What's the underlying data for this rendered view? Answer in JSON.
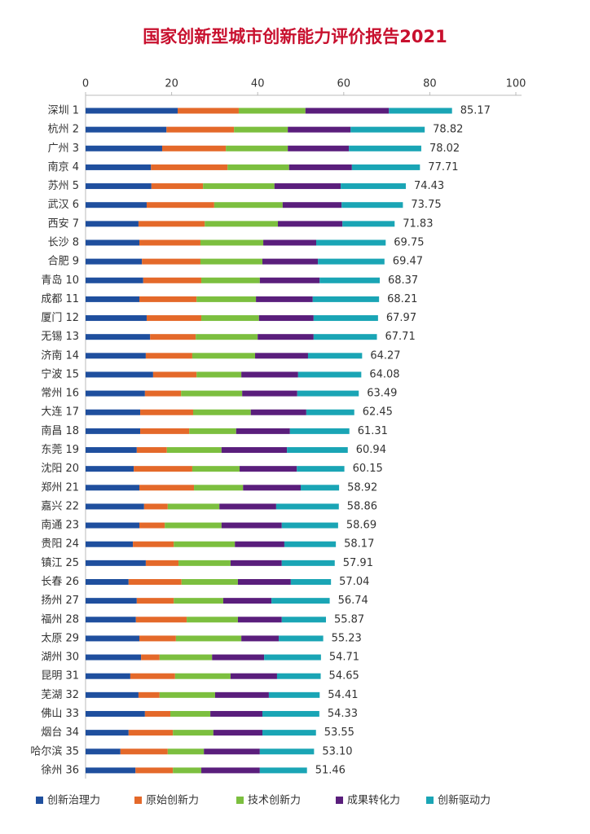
{
  "chart_data": {
    "type": "stacked-bar-horizontal",
    "title": "国家创新型城市创新能力评价报告2021",
    "categories": [
      "深圳 1",
      "杭州 2",
      "广州 3",
      "南京 4",
      "苏州 5",
      "武汉 6",
      "西安 7",
      "长沙 8",
      "合肥 9",
      "青岛 10",
      "成都 11",
      "厦门 12",
      "无锡 13",
      "济南 14",
      "宁波 15",
      "常州 16",
      "大连 17",
      "南昌 18",
      "东莞 19",
      "沈阳 20",
      "郑州 21",
      "嘉兴 22",
      "南通 23",
      "贵阳 24",
      "镇江 25",
      "长春 26",
      "扬州 27",
      "福州 28",
      "太原 29",
      "湖州 30",
      "昆明 31",
      "芜湖 32",
      "佛山 33",
      "烟台 34",
      "哈尔滨 35",
      "徐州 36"
    ],
    "series": [
      {
        "name": "创新治理力",
        "color": "#1f4f9e",
        "values": [
          21.4,
          18.8,
          17.8,
          15.2,
          15.3,
          14.2,
          12.3,
          12.5,
          13.1,
          13.4,
          12.5,
          14.2,
          15.0,
          14.0,
          15.7,
          13.8,
          12.7,
          12.7,
          11.9,
          11.2,
          12.5,
          13.6,
          12.5,
          11.0,
          14.0,
          10.0,
          11.9,
          11.7,
          12.5,
          12.9,
          10.4,
          12.3,
          13.8,
          10.0,
          8.1,
          11.6
        ]
      },
      {
        "name": "原始创新力",
        "color": "#e4692a",
        "values": [
          14.2,
          15.7,
          14.8,
          17.8,
          12.0,
          15.7,
          15.4,
          14.2,
          13.6,
          13.5,
          13.3,
          12.7,
          10.6,
          10.8,
          10.1,
          8.4,
          12.3,
          11.4,
          7.0,
          13.6,
          12.7,
          5.5,
          5.9,
          9.5,
          7.6,
          12.3,
          8.6,
          11.8,
          8.5,
          4.3,
          10.4,
          4.9,
          5.9,
          10.3,
          11.0,
          8.7
        ]
      },
      {
        "name": "技术创新力",
        "color": "#7cbf3f",
        "values": [
          15.5,
          12.5,
          14.4,
          14.3,
          16.6,
          15.9,
          17.0,
          14.6,
          14.4,
          13.6,
          13.8,
          13.4,
          14.4,
          14.6,
          10.4,
          14.2,
          13.4,
          10.9,
          12.7,
          11.0,
          11.4,
          12.0,
          13.2,
          14.2,
          12.1,
          13.1,
          11.5,
          11.9,
          15.2,
          12.2,
          12.9,
          12.9,
          9.3,
          9.4,
          8.4,
          6.6
        ]
      },
      {
        "name": "成果转化力",
        "color": "#5a1e7c",
        "values": [
          19.4,
          14.6,
          14.2,
          14.6,
          15.4,
          13.7,
          15.0,
          12.3,
          12.9,
          13.9,
          13.2,
          12.7,
          13.0,
          12.3,
          13.2,
          12.8,
          12.9,
          12.5,
          15.2,
          13.3,
          13.4,
          13.2,
          14.0,
          11.5,
          11.9,
          12.3,
          11.2,
          10.2,
          8.7,
          12.1,
          10.8,
          12.5,
          12.1,
          11.4,
          13.0,
          13.6
        ]
      },
      {
        "name": "创新驱动力",
        "color": "#1aa5b5",
        "values": [
          14.67,
          17.22,
          16.82,
          15.81,
          15.13,
          14.25,
          12.13,
          16.15,
          15.47,
          13.97,
          15.41,
          14.97,
          14.71,
          12.57,
          14.68,
          14.29,
          11.15,
          13.81,
          14.14,
          11.05,
          8.92,
          14.56,
          13.09,
          11.97,
          12.31,
          9.34,
          13.54,
          10.27,
          10.33,
          13.21,
          10.15,
          11.81,
          13.23,
          12.45,
          12.6,
          10.96
        ]
      }
    ],
    "totals": [
      85.17,
      78.82,
      78.02,
      77.71,
      74.43,
      73.75,
      71.83,
      69.75,
      69.47,
      68.37,
      68.21,
      67.97,
      67.71,
      64.27,
      64.08,
      63.49,
      62.45,
      61.31,
      60.94,
      60.15,
      58.92,
      58.86,
      58.69,
      58.17,
      57.91,
      57.04,
      56.74,
      55.87,
      55.23,
      54.71,
      54.65,
      54.41,
      54.33,
      53.55,
      53.1,
      51.46
    ],
    "total_labels": [
      "85.17",
      "78.82",
      "78.02",
      "77.71",
      "74.43",
      "73.75",
      "71.83",
      "69.75",
      "69.47",
      "68.37",
      "68.21",
      "67.97",
      "67.71",
      "64.27",
      "64.08",
      "63.49",
      "62.45",
      "61.31",
      "60.94",
      "60.15",
      "58.92",
      "58.86",
      "58.69",
      "58.17",
      "57.91",
      "57.04",
      "56.74",
      "55.87",
      "55.23",
      "54.71",
      "54.65",
      "54.41",
      "54.33",
      "53.55",
      "53.10",
      "51.46"
    ],
    "xlim": [
      0,
      100
    ],
    "xticks": [
      0,
      20,
      40,
      60,
      80,
      100
    ]
  }
}
